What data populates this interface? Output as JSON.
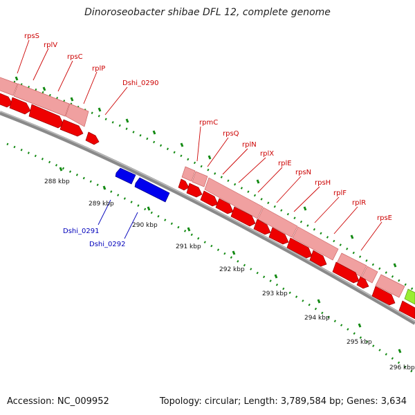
{
  "title": "Dinoroseobacter shibae DFL 12, complete genome",
  "footer": {
    "accession": "Accession: NC_009952",
    "summary": "Topology: circular; Length: 3,789,584 bp; Genes: 3,634"
  },
  "colors": {
    "gene_forward": "#ee0000",
    "gene_reverse": "#0000ee",
    "operon_box": "#f0a0a0",
    "green_gene": "#99ee33",
    "tick": "#138a13",
    "backbone": "#888888",
    "label_red": "#cc0000",
    "label_blue": "#0000bb"
  },
  "kbp_ticks": [
    "288 kbp",
    "289 kbp",
    "290 kbp",
    "291 kbp",
    "292 kbp",
    "293 kbp",
    "294 kbp",
    "295 kbp",
    "296 kbp"
  ],
  "gene_labels_top_left": [
    "rpsS",
    "rplV",
    "rpsC",
    "rplP",
    "Dshi_0290"
  ],
  "gene_labels_top_right": [
    "rpmC",
    "rpsQ",
    "rplN",
    "rplX",
    "rplE",
    "rpsN",
    "rpsH",
    "rplF",
    "rplR",
    "rpsE"
  ],
  "gene_labels_bottom": [
    "Dshi_0291",
    "Dshi_0292"
  ]
}
